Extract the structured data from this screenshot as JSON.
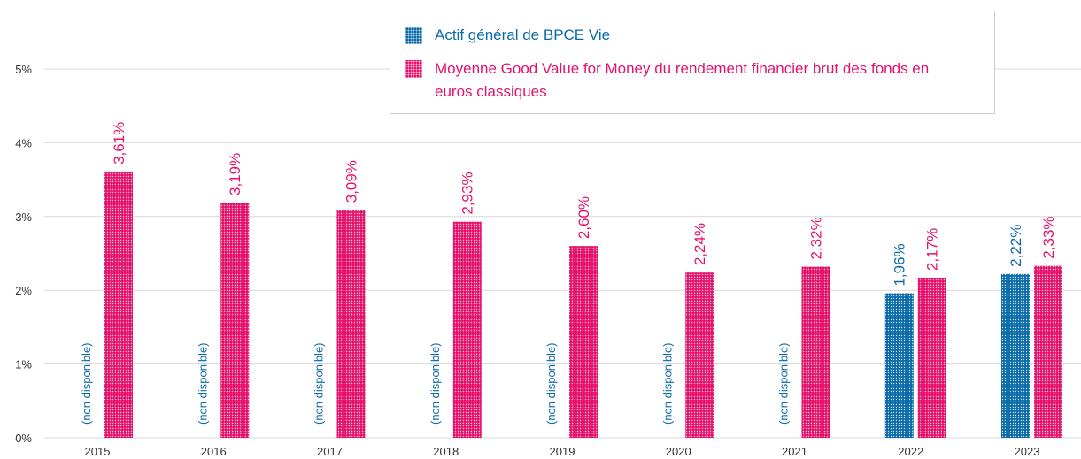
{
  "chart_data": {
    "type": "bar",
    "categories": [
      "2015",
      "2016",
      "2017",
      "2018",
      "2019",
      "2020",
      "2021",
      "2022",
      "2023"
    ],
    "series": [
      {
        "name": "Actif général de BPCE Vie",
        "color": "#0a6aa8",
        "values": [
          null,
          null,
          null,
          null,
          null,
          null,
          null,
          1.96,
          2.22
        ],
        "value_labels": [
          "(non disponible)",
          "(non disponible)",
          "(non disponible)",
          "(non disponible)",
          "(non disponible)",
          "(non disponible)",
          "(non disponible)",
          "1,96%",
          "2,22%"
        ]
      },
      {
        "name": "Moyenne Good Value for Money du rendement financier brut des fonds en euros classiques",
        "color": "#e5126b",
        "values": [
          3.61,
          3.19,
          3.09,
          2.93,
          2.6,
          2.24,
          2.32,
          2.17,
          2.33
        ],
        "value_labels": [
          "3,61%",
          "3,19%",
          "3,09%",
          "2,93%",
          "2,60%",
          "2,24%",
          "2,32%",
          "2,17%",
          "2,33%"
        ]
      }
    ],
    "ylim": [
      0,
      5
    ],
    "yticks": [
      {
        "value": 0,
        "label": "0%"
      },
      {
        "value": 1,
        "label": "1%"
      },
      {
        "value": 2,
        "label": "2%"
      },
      {
        "value": 3,
        "label": "3%"
      },
      {
        "value": 4,
        "label": "4%"
      },
      {
        "value": 5,
        "label": "5%"
      }
    ],
    "grid": true
  }
}
